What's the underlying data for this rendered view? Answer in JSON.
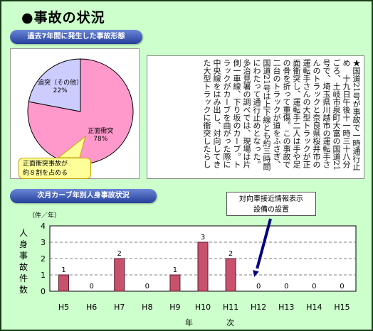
{
  "page": {
    "title": "●事故の状況"
  },
  "pie_section": {
    "bar_label": "過去7年間に発生した事故形態",
    "callout_line1": "正面衝突事故が",
    "callout_line2": "約８割を占める"
  },
  "news_clipping": {
    "text": "★国道21号が事故で一時通行止め　十九日午後十一時三十八分ごろ、土岐市泉町大富の国道21号で、埼玉県川越市の運転手さんのトラックと奈良県桜井市の運転手さんの大型トラックが正面衝突し、運転手二人は手や足の骨を折って重傷。この事故で二台のトラックが道をふさぎ、国道21号は上下線とも約三時間にわたって通行止めとなった。多治見署の調べでは、現場は片側一車線、下り坂のカーブ。トラックがカーブを曲がった際に中央線をはみ出し、対向してきた大型トラックに衝突したらし"
  },
  "bar_section": {
    "bar_label": "次月カーブ年別人身事故状況",
    "unit_label": "（件／年）",
    "annotation_line1": "対向車接近情報表示",
    "annotation_line2": "設備の設置"
  },
  "colors": {
    "background": "#ccffcc",
    "pie_head_on": "#ff99cc",
    "pie_rear_end": "#ccccff",
    "bar_fill": "#c8526e",
    "arrow": "#000080"
  },
  "chart_data": [
    {
      "type": "pie",
      "title": "",
      "slices": [
        {
          "label": "正面衝突",
          "value": 78,
          "value_label": "78%"
        },
        {
          "label": "追突（その他）",
          "value": 22,
          "value_label": "22%"
        }
      ]
    },
    {
      "type": "bar",
      "title": "",
      "categories": [
        "H5",
        "H6",
        "H7",
        "H8",
        "H9",
        "H10",
        "H11",
        "H12",
        "H13",
        "H14",
        "H15"
      ],
      "values": [
        1,
        0,
        2,
        0,
        1,
        3,
        2,
        0,
        0,
        0,
        0
      ],
      "xlabel": "年　次",
      "ylabel": "人身事故件数",
      "ylim": [
        0,
        4
      ],
      "yticks": [
        0,
        1,
        2,
        3,
        4
      ],
      "grid": true
    }
  ]
}
